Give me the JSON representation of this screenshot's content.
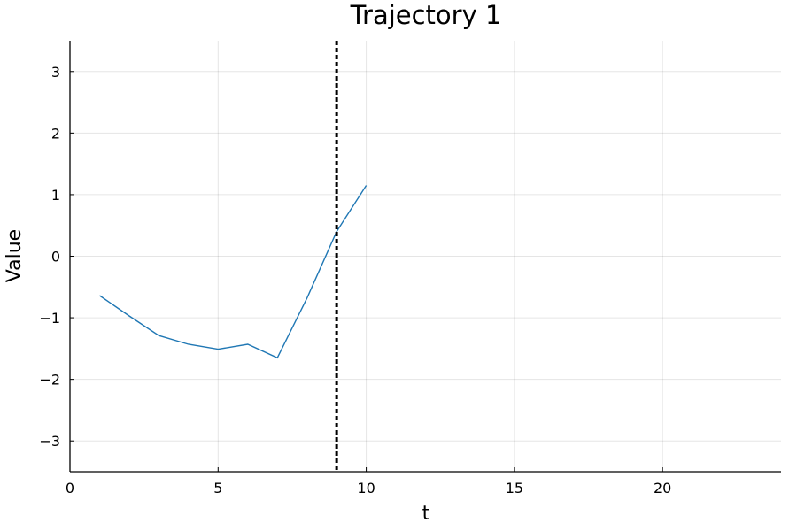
{
  "chart_data": {
    "type": "line",
    "title": "Trajectory 1",
    "xlabel": "t",
    "ylabel": "Value",
    "xlim": [
      0,
      24
    ],
    "ylim": [
      -3.5,
      3.5
    ],
    "xticks": [
      0,
      5,
      10,
      15,
      20
    ],
    "yticks": [
      -3,
      -2,
      -1,
      0,
      1,
      2,
      3
    ],
    "grid": true,
    "series": [
      {
        "color": "#1f77b4",
        "x": [
          1,
          2,
          3,
          4,
          5,
          6,
          7,
          8,
          9,
          10
        ],
        "y": [
          -0.64,
          -0.97,
          -1.29,
          -1.43,
          -1.51,
          -1.43,
          -1.65,
          -0.68,
          0.4,
          1.15
        ]
      }
    ],
    "vline": {
      "x": 9,
      "style": "dotted",
      "color": "#000000"
    }
  }
}
